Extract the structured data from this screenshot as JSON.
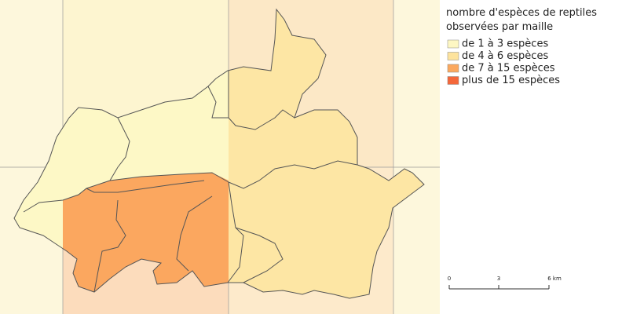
{
  "legend": {
    "title": [
      "nombre d'espèces de reptiles",
      "observées par maille"
    ],
    "items": [
      {
        "label": "de 1 à 3 espèces",
        "color": "#fdf7c3"
      },
      {
        "label": "de 4 à 6 espèces",
        "color": "#fde39d"
      },
      {
        "label": "de 7 à 15 espèces",
        "color": "#fba85e"
      },
      {
        "label": "plus de 15 espèces",
        "color": "#f4673a"
      }
    ]
  },
  "scale": {
    "labels": [
      "0",
      "3",
      "6 km"
    ]
  }
}
